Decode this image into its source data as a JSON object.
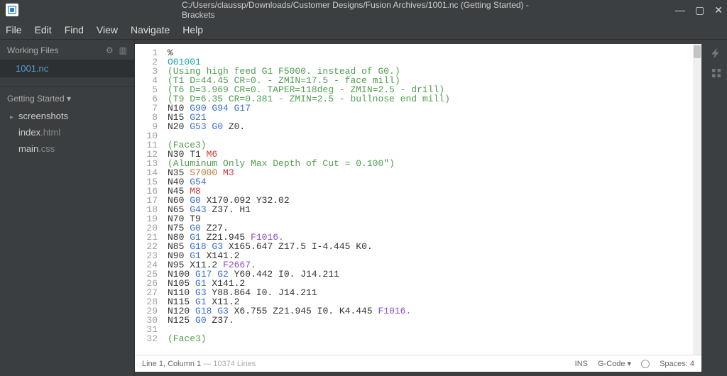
{
  "window": {
    "title": "C:/Users/claussp/Downloads/Customer Designs/Fusion Archives/1001.nc (Getting Started) - Brackets"
  },
  "menubar": [
    "File",
    "Edit",
    "Find",
    "View",
    "Navigate",
    "Help"
  ],
  "sidebar": {
    "working_files_label": "Working Files",
    "working_files": [
      "1001.nc"
    ],
    "project_label": "Getting Started ▾",
    "tree": {
      "folders": [
        {
          "name": "screenshots"
        }
      ],
      "files": [
        {
          "base": "index",
          "ext": ".html"
        },
        {
          "base": "main",
          "ext": ".css"
        }
      ]
    }
  },
  "editor": {
    "lines": [
      {
        "n": 1,
        "segs": [
          {
            "t": "%",
            "c": ""
          }
        ]
      },
      {
        "n": 2,
        "segs": [
          {
            "t": "O01001",
            "c": "c-o"
          }
        ]
      },
      {
        "n": 3,
        "segs": [
          {
            "t": "(Using high feed G1 F5000. instead of G0.)",
            "c": "c-grn"
          }
        ]
      },
      {
        "n": 4,
        "segs": [
          {
            "t": "(T1 D=44.45 CR=0. - ZMIN=17.5 - face mill)",
            "c": "c-grn"
          }
        ]
      },
      {
        "n": 5,
        "segs": [
          {
            "t": "(T6 D=3.969 CR=0. TAPER=118deg - ZMIN=2.5 - drill)",
            "c": "c-grn"
          }
        ]
      },
      {
        "n": 6,
        "segs": [
          {
            "t": "(T9 D=6.35 CR=0.381 - ZMIN=2.5 - bullnose end mill)",
            "c": "c-grn"
          }
        ]
      },
      {
        "n": 7,
        "segs": [
          {
            "t": "N10 ",
            "c": ""
          },
          {
            "t": "G90 G94 G17",
            "c": "c-blu"
          }
        ]
      },
      {
        "n": 8,
        "segs": [
          {
            "t": "N15 ",
            "c": ""
          },
          {
            "t": "G21",
            "c": "c-blu"
          }
        ]
      },
      {
        "n": 9,
        "segs": [
          {
            "t": "N20 ",
            "c": ""
          },
          {
            "t": "G53 G0",
            "c": "c-blu"
          },
          {
            "t": " Z0.",
            "c": ""
          }
        ]
      },
      {
        "n": 10,
        "segs": [
          {
            "t": "",
            "c": ""
          }
        ]
      },
      {
        "n": 11,
        "segs": [
          {
            "t": "(Face3)",
            "c": "c-grn"
          }
        ]
      },
      {
        "n": 12,
        "segs": [
          {
            "t": "N30 ",
            "c": ""
          },
          {
            "t": "T1 ",
            "c": ""
          },
          {
            "t": "M6",
            "c": "c-red"
          }
        ]
      },
      {
        "n": 13,
        "segs": [
          {
            "t": "(Aluminum Only Max Depth of Cut = 0.100\")",
            "c": "c-grn"
          }
        ]
      },
      {
        "n": 14,
        "segs": [
          {
            "t": "N35 ",
            "c": ""
          },
          {
            "t": "S7000",
            "c": "c-tan"
          },
          {
            "t": " ",
            "c": ""
          },
          {
            "t": "M3",
            "c": "c-red"
          }
        ]
      },
      {
        "n": 15,
        "segs": [
          {
            "t": "N40 ",
            "c": ""
          },
          {
            "t": "G54",
            "c": "c-blu"
          }
        ]
      },
      {
        "n": 16,
        "segs": [
          {
            "t": "N45 ",
            "c": ""
          },
          {
            "t": "M8",
            "c": "c-red"
          }
        ]
      },
      {
        "n": 17,
        "segs": [
          {
            "t": "N60 ",
            "c": ""
          },
          {
            "t": "G0",
            "c": "c-blu"
          },
          {
            "t": " X170.092 Y32.02",
            "c": ""
          }
        ]
      },
      {
        "n": 18,
        "segs": [
          {
            "t": "N65 ",
            "c": ""
          },
          {
            "t": "G43",
            "c": "c-blu"
          },
          {
            "t": " Z37. H1",
            "c": ""
          }
        ]
      },
      {
        "n": 19,
        "segs": [
          {
            "t": "N70 ",
            "c": ""
          },
          {
            "t": "T9",
            "c": ""
          }
        ]
      },
      {
        "n": 20,
        "segs": [
          {
            "t": "N75 ",
            "c": ""
          },
          {
            "t": "G0",
            "c": "c-blu"
          },
          {
            "t": " Z27.",
            "c": ""
          }
        ]
      },
      {
        "n": 21,
        "segs": [
          {
            "t": "N80 ",
            "c": ""
          },
          {
            "t": "G1",
            "c": "c-blu"
          },
          {
            "t": " Z21.945 ",
            "c": ""
          },
          {
            "t": "F1016.",
            "c": "c-pur"
          }
        ]
      },
      {
        "n": 22,
        "segs": [
          {
            "t": "N85 ",
            "c": ""
          },
          {
            "t": "G18 G3",
            "c": "c-blu"
          },
          {
            "t": " X165.647 Z17.5 I-4.445 K0.",
            "c": ""
          }
        ]
      },
      {
        "n": 23,
        "segs": [
          {
            "t": "N90 ",
            "c": ""
          },
          {
            "t": "G1",
            "c": "c-blu"
          },
          {
            "t": " X141.2",
            "c": ""
          }
        ]
      },
      {
        "n": 24,
        "segs": [
          {
            "t": "N95 ",
            "c": ""
          },
          {
            "t": "X11.2 ",
            "c": ""
          },
          {
            "t": "F2667.",
            "c": "c-pur"
          }
        ]
      },
      {
        "n": 25,
        "segs": [
          {
            "t": "N100 ",
            "c": ""
          },
          {
            "t": "G17 G2",
            "c": "c-blu"
          },
          {
            "t": " Y60.442 I0. J14.211",
            "c": ""
          }
        ]
      },
      {
        "n": 26,
        "segs": [
          {
            "t": "N105 ",
            "c": ""
          },
          {
            "t": "G1",
            "c": "c-blu"
          },
          {
            "t": " X141.2",
            "c": ""
          }
        ]
      },
      {
        "n": 27,
        "segs": [
          {
            "t": "N110 ",
            "c": ""
          },
          {
            "t": "G3",
            "c": "c-blu"
          },
          {
            "t": " Y88.864 I0. J14.211",
            "c": ""
          }
        ]
      },
      {
        "n": 28,
        "segs": [
          {
            "t": "N115 ",
            "c": ""
          },
          {
            "t": "G1",
            "c": "c-blu"
          },
          {
            "t": " X11.2",
            "c": ""
          }
        ]
      },
      {
        "n": 29,
        "segs": [
          {
            "t": "N120 ",
            "c": ""
          },
          {
            "t": "G18 G3",
            "c": "c-blu"
          },
          {
            "t": " X6.755 Z21.945 I0. K4.445 ",
            "c": ""
          },
          {
            "t": "F1016.",
            "c": "c-pur"
          }
        ]
      },
      {
        "n": 30,
        "segs": [
          {
            "t": "N125 ",
            "c": ""
          },
          {
            "t": "G0",
            "c": "c-blu"
          },
          {
            "t": " Z37.",
            "c": ""
          }
        ]
      },
      {
        "n": 31,
        "segs": [
          {
            "t": "",
            "c": ""
          }
        ]
      },
      {
        "n": 32,
        "segs": [
          {
            "t": "(Face3)",
            "c": "c-grn"
          }
        ]
      }
    ]
  },
  "statusbar": {
    "left_main": "Line 1, Column 1",
    "left_sub": " — 10374 Lines",
    "ins": "INS",
    "lang": "G-Code ▾",
    "spaces": "Spaces: 4"
  }
}
